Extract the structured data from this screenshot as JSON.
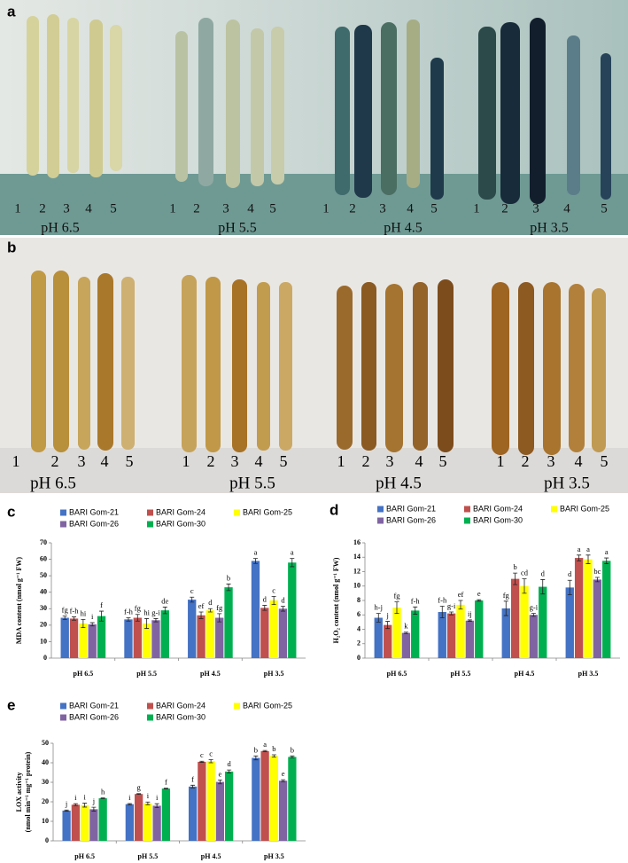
{
  "panel_a": {
    "letter": "a",
    "numbers": [
      [
        "1",
        "2",
        "3",
        "4",
        "5"
      ],
      [
        "1",
        "2",
        "3",
        "4",
        "5"
      ],
      [
        "1",
        "2",
        "3",
        "4",
        "5"
      ],
      [
        "1",
        "2",
        "3",
        "4",
        "5"
      ]
    ],
    "ph_labels": [
      "pH 6.5",
      "pH 5.5",
      "pH 4.5",
      "pH 3.5"
    ]
  },
  "panel_b": {
    "letter": "b",
    "numbers": [
      [
        "1",
        "2",
        "3",
        "4",
        "5"
      ],
      [
        "1",
        "2",
        "3",
        "4",
        "5"
      ],
      [
        "1",
        "2",
        "3",
        "4",
        "5"
      ],
      [
        "1",
        "2",
        "3",
        "4",
        "5"
      ]
    ],
    "ph_labels": [
      "pH 6.5",
      "pH 5.5",
      "pH 4.5",
      "pH 3.5"
    ]
  },
  "chart_data": [
    {
      "type": "bar",
      "panel_label": "c",
      "y_label": "MDA content (nmol g⁻¹ FW)",
      "categories": [
        "pH 6.5",
        "pH 5.5",
        "pH 4.5",
        "pH 3.5"
      ],
      "ylim": [
        0,
        70
      ],
      "yticks": [
        0,
        10,
        20,
        30,
        40,
        50,
        60,
        70
      ],
      "series": [
        {
          "name": "BARI Gom-21",
          "color": "#4472c4",
          "values": [
            24.5,
            23.5,
            35.5,
            59
          ],
          "errors": [
            1,
            1,
            1.5,
            1.5
          ],
          "significance": [
            "fg",
            "f-h",
            "c",
            "a"
          ]
        },
        {
          "name": "BARI Gom-24",
          "color": "#c0504d",
          "values": [
            24,
            24.5,
            26,
            30.5
          ],
          "errors": [
            1,
            2,
            2,
            1.5
          ],
          "significance": [
            "f-h",
            "fg",
            "ef",
            "d"
          ]
        },
        {
          "name": "BARI Gom-25",
          "color": "#ffff00",
          "values": [
            21,
            21,
            29,
            35
          ],
          "errors": [
            2.5,
            3,
            1,
            2.5
          ],
          "significance": [
            "hi",
            "hi",
            "d",
            "c"
          ]
        },
        {
          "name": "BARI Gom-26",
          "color": "#8064a2",
          "values": [
            20.5,
            23,
            24.5,
            30
          ],
          "errors": [
            1,
            1,
            2.5,
            1.5
          ],
          "significance": [
            "i",
            "g-i",
            "fg",
            "d"
          ]
        },
        {
          "name": "BARI Gom-30",
          "color": "#00b050",
          "values": [
            25.5,
            29,
            43,
            58
          ],
          "errors": [
            3,
            2,
            2,
            2.5
          ],
          "significance": [
            "f",
            "de",
            "b",
            "a"
          ]
        }
      ]
    },
    {
      "type": "bar",
      "panel_label": "d",
      "y_label": "H₂O₂ content (nmol g⁻¹ FW)",
      "categories": [
        "pH 6.5",
        "pH 5.5",
        "pH 4.5",
        "pH 3.5"
      ],
      "ylim": [
        0,
        16
      ],
      "yticks": [
        0,
        2,
        4,
        6,
        8,
        10,
        12,
        14,
        16
      ],
      "series": [
        {
          "name": "BARI Gom-21",
          "color": "#4472c4",
          "values": [
            5.6,
            6.4,
            6.9,
            9.8
          ],
          "errors": [
            0.6,
            0.8,
            1,
            1
          ],
          "significance": [
            "h-j",
            "f-h",
            "fg",
            "d"
          ]
        },
        {
          "name": "BARI Gom-24",
          "color": "#c0504d",
          "values": [
            4.6,
            6.2,
            11,
            13.9
          ],
          "errors": [
            0.5,
            0.2,
            0.8,
            0.4
          ],
          "significance": [
            "j",
            "g-i",
            "b",
            "a"
          ]
        },
        {
          "name": "BARI Gom-25",
          "color": "#ffff00",
          "values": [
            7,
            7.4,
            10,
            13.7
          ],
          "errors": [
            0.8,
            0.6,
            1,
            0.6
          ],
          "significance": [
            "fg",
            "ef",
            "cd",
            "a"
          ]
        },
        {
          "name": "BARI Gom-26",
          "color": "#8064a2",
          "values": [
            3.5,
            5.2,
            6,
            10.9
          ],
          "errors": [
            0.1,
            0.1,
            0.2,
            0.3
          ],
          "significance": [
            "k",
            "ij",
            "g-i",
            "bc"
          ]
        },
        {
          "name": "BARI Gom-30",
          "color": "#00b050",
          "values": [
            6.6,
            8,
            9.9,
            13.5
          ],
          "errors": [
            0.5,
            0.1,
            1,
            0.4
          ],
          "significance": [
            "f-h",
            "e",
            "d",
            "a"
          ]
        }
      ]
    },
    {
      "type": "bar",
      "panel_label": "e",
      "y_label": [
        "LOX activity",
        "(nmol min⁻¹ mg⁻¹ protein)"
      ],
      "categories": [
        "pH 6.5",
        "pH 5.5",
        "pH 4.5",
        "pH 3.5"
      ],
      "ylim": [
        0,
        50
      ],
      "yticks": [
        0,
        10,
        20,
        30,
        40,
        50
      ],
      "series": [
        {
          "name": "BARI Gom-21",
          "color": "#4472c4",
          "values": [
            15.5,
            18.8,
            27.8,
            42.5
          ],
          "errors": [
            0.3,
            0.3,
            0.7,
            1
          ],
          "significance": [
            "j",
            "i",
            "f",
            "b"
          ]
        },
        {
          "name": "BARI Gom-24",
          "color": "#c0504d",
          "values": [
            18.5,
            24,
            40.5,
            46
          ],
          "errors": [
            0.5,
            0.2,
            0.3,
            0.3
          ],
          "significance": [
            "i",
            "g",
            "c",
            "a"
          ]
        },
        {
          "name": "BARI Gom-25",
          "color": "#ffff00",
          "values": [
            18.3,
            19.2,
            40.8,
            43.5
          ],
          "errors": [
            1,
            0.7,
            0.8,
            0.6
          ],
          "significance": [
            "i",
            "i",
            "c",
            "b"
          ]
        },
        {
          "name": "BARI Gom-26",
          "color": "#8064a2",
          "values": [
            16.2,
            18,
            30.2,
            30.8
          ],
          "errors": [
            1,
            1,
            1,
            0.5
          ],
          "significance": [
            "j",
            "i",
            "e",
            "e"
          ]
        },
        {
          "name": "BARI Gom-30",
          "color": "#00b050",
          "values": [
            21.8,
            26.8,
            35.5,
            43
          ],
          "errors": [
            0.2,
            0.2,
            0.8,
            0.5
          ],
          "significance": [
            "h",
            "f",
            "d",
            "b"
          ]
        }
      ]
    }
  ]
}
